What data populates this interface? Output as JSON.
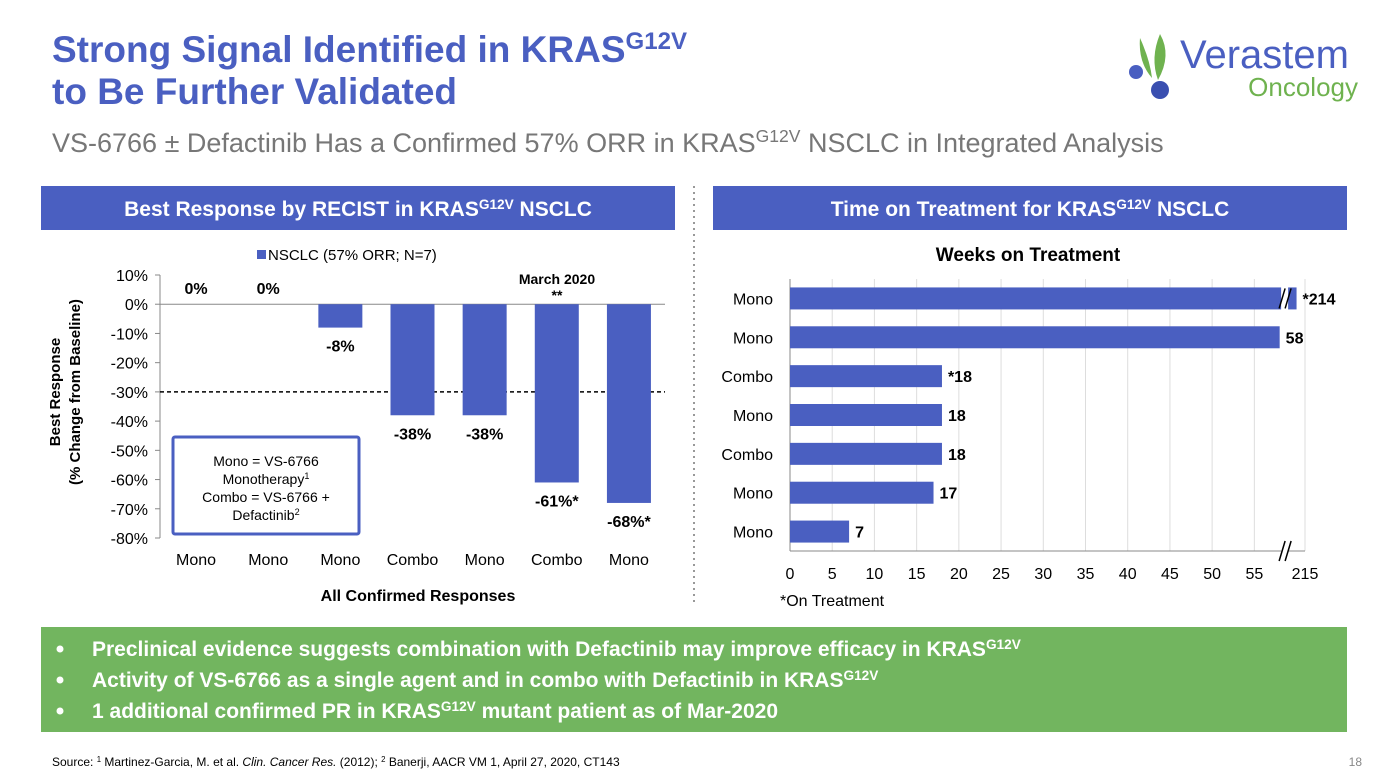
{
  "header": {
    "title_line1": "Strong Signal Identified in KRAS",
    "title_line1_sup": "G12V",
    "title_line2": "to Be Further Validated",
    "subtitle": "VS-6766 ± Defactinib Has a Confirmed 57% ORR in KRAS",
    "subtitle_sup": "G12V",
    "subtitle_end": " NSCLC in Integrated Analysis"
  },
  "logo": {
    "name": "Verastem",
    "sub": "Oncology"
  },
  "panels": [
    {
      "title": "Best Response by RECIST in KRAS",
      "sup": "G12V",
      "end": " NSCLC"
    },
    {
      "title": "Time on Treatment for KRAS",
      "sup": "G12V",
      "end": " NSCLC"
    }
  ],
  "chart_data": [
    {
      "type": "bar",
      "legend": "NSCLC (57% ORR; N=7)",
      "color": "#4a5fc1",
      "categories": [
        "Mono",
        "Mono",
        "Mono",
        "Combo",
        "Mono",
        "Combo",
        "Mono"
      ],
      "values": [
        0,
        0,
        -8,
        -38,
        -38,
        -61,
        -68
      ],
      "value_labels": [
        "0%",
        "0%",
        "-8%",
        "-38%",
        "-38%",
        "-61%*",
        "-68%*"
      ],
      "ylim": [
        -80,
        10
      ],
      "yticks": [
        {
          "value": 10,
          "label": "10%"
        },
        {
          "value": 0,
          "label": "0%"
        },
        {
          "value": -10,
          "label": "-10%"
        },
        {
          "value": -20,
          "label": "-20%"
        },
        {
          "value": -30,
          "label": "-30%"
        },
        {
          "value": -40,
          "label": "-40%"
        },
        {
          "value": -50,
          "label": "-50%"
        },
        {
          "value": -60,
          "label": "-60%"
        },
        {
          "value": -70,
          "label": "-70%"
        },
        {
          "value": -80,
          "label": "-80%"
        }
      ],
      "reference_line": -30,
      "xlabel": "All Confirmed Responses",
      "ylabel": [
        "Best Response",
        "(% Change from Baseline)"
      ],
      "annotation": {
        "text": "March 2020",
        "mark": "**"
      },
      "note": [
        {
          "text": "Mono = VS-6766"
        },
        {
          "text": "Monotherapy",
          "sup": "1"
        },
        {
          "text": "Combo = VS-6766 +"
        },
        {
          "text": "Defactinib",
          "sup": "2"
        }
      ]
    },
    {
      "type": "hbar",
      "title": "Weeks on Treatment",
      "color": "#4a5fc1",
      "categories": [
        "Mono",
        "Mono",
        "Combo",
        "Mono",
        "Combo",
        "Mono",
        "Mono"
      ],
      "values": [
        214,
        58,
        18,
        18,
        18,
        17,
        7
      ],
      "value_labels": [
        "*214",
        "58",
        "*18",
        "18",
        "18",
        "17",
        "7"
      ],
      "xlim": [
        0,
        215
      ],
      "xbreak": [
        59,
        213
      ],
      "xticks": [
        0,
        5,
        10,
        15,
        20,
        25,
        30,
        35,
        40,
        45,
        50,
        55,
        215
      ],
      "grid": true,
      "footnote": "*On Treatment"
    }
  ],
  "bullets": [
    {
      "text": "Preclinical evidence suggests combination with Defactinib may improve efficacy in KRAS",
      "sup": "G12V"
    },
    {
      "text": "Activity of VS-6766 as a single agent and in combo with Defactinib in KRAS",
      "sup": "G12V"
    },
    {
      "text": "1 additional confirmed PR in KRAS",
      "sup": "G12V",
      "end": " mutant patient as of Mar-2020"
    }
  ],
  "source": [
    {
      "text": "Source: "
    },
    {
      "text": "1",
      "sup": true
    },
    {
      "text": " Martinez-Garcia, M. et al. "
    },
    {
      "text": "Clin. Cancer Res.",
      "italic": true
    },
    {
      "text": " (2012); "
    },
    {
      "text": "2",
      "sup": true
    },
    {
      "text": " Banerji, AACR VM 1, April 27, 2020, CT143"
    }
  ],
  "page": "18"
}
